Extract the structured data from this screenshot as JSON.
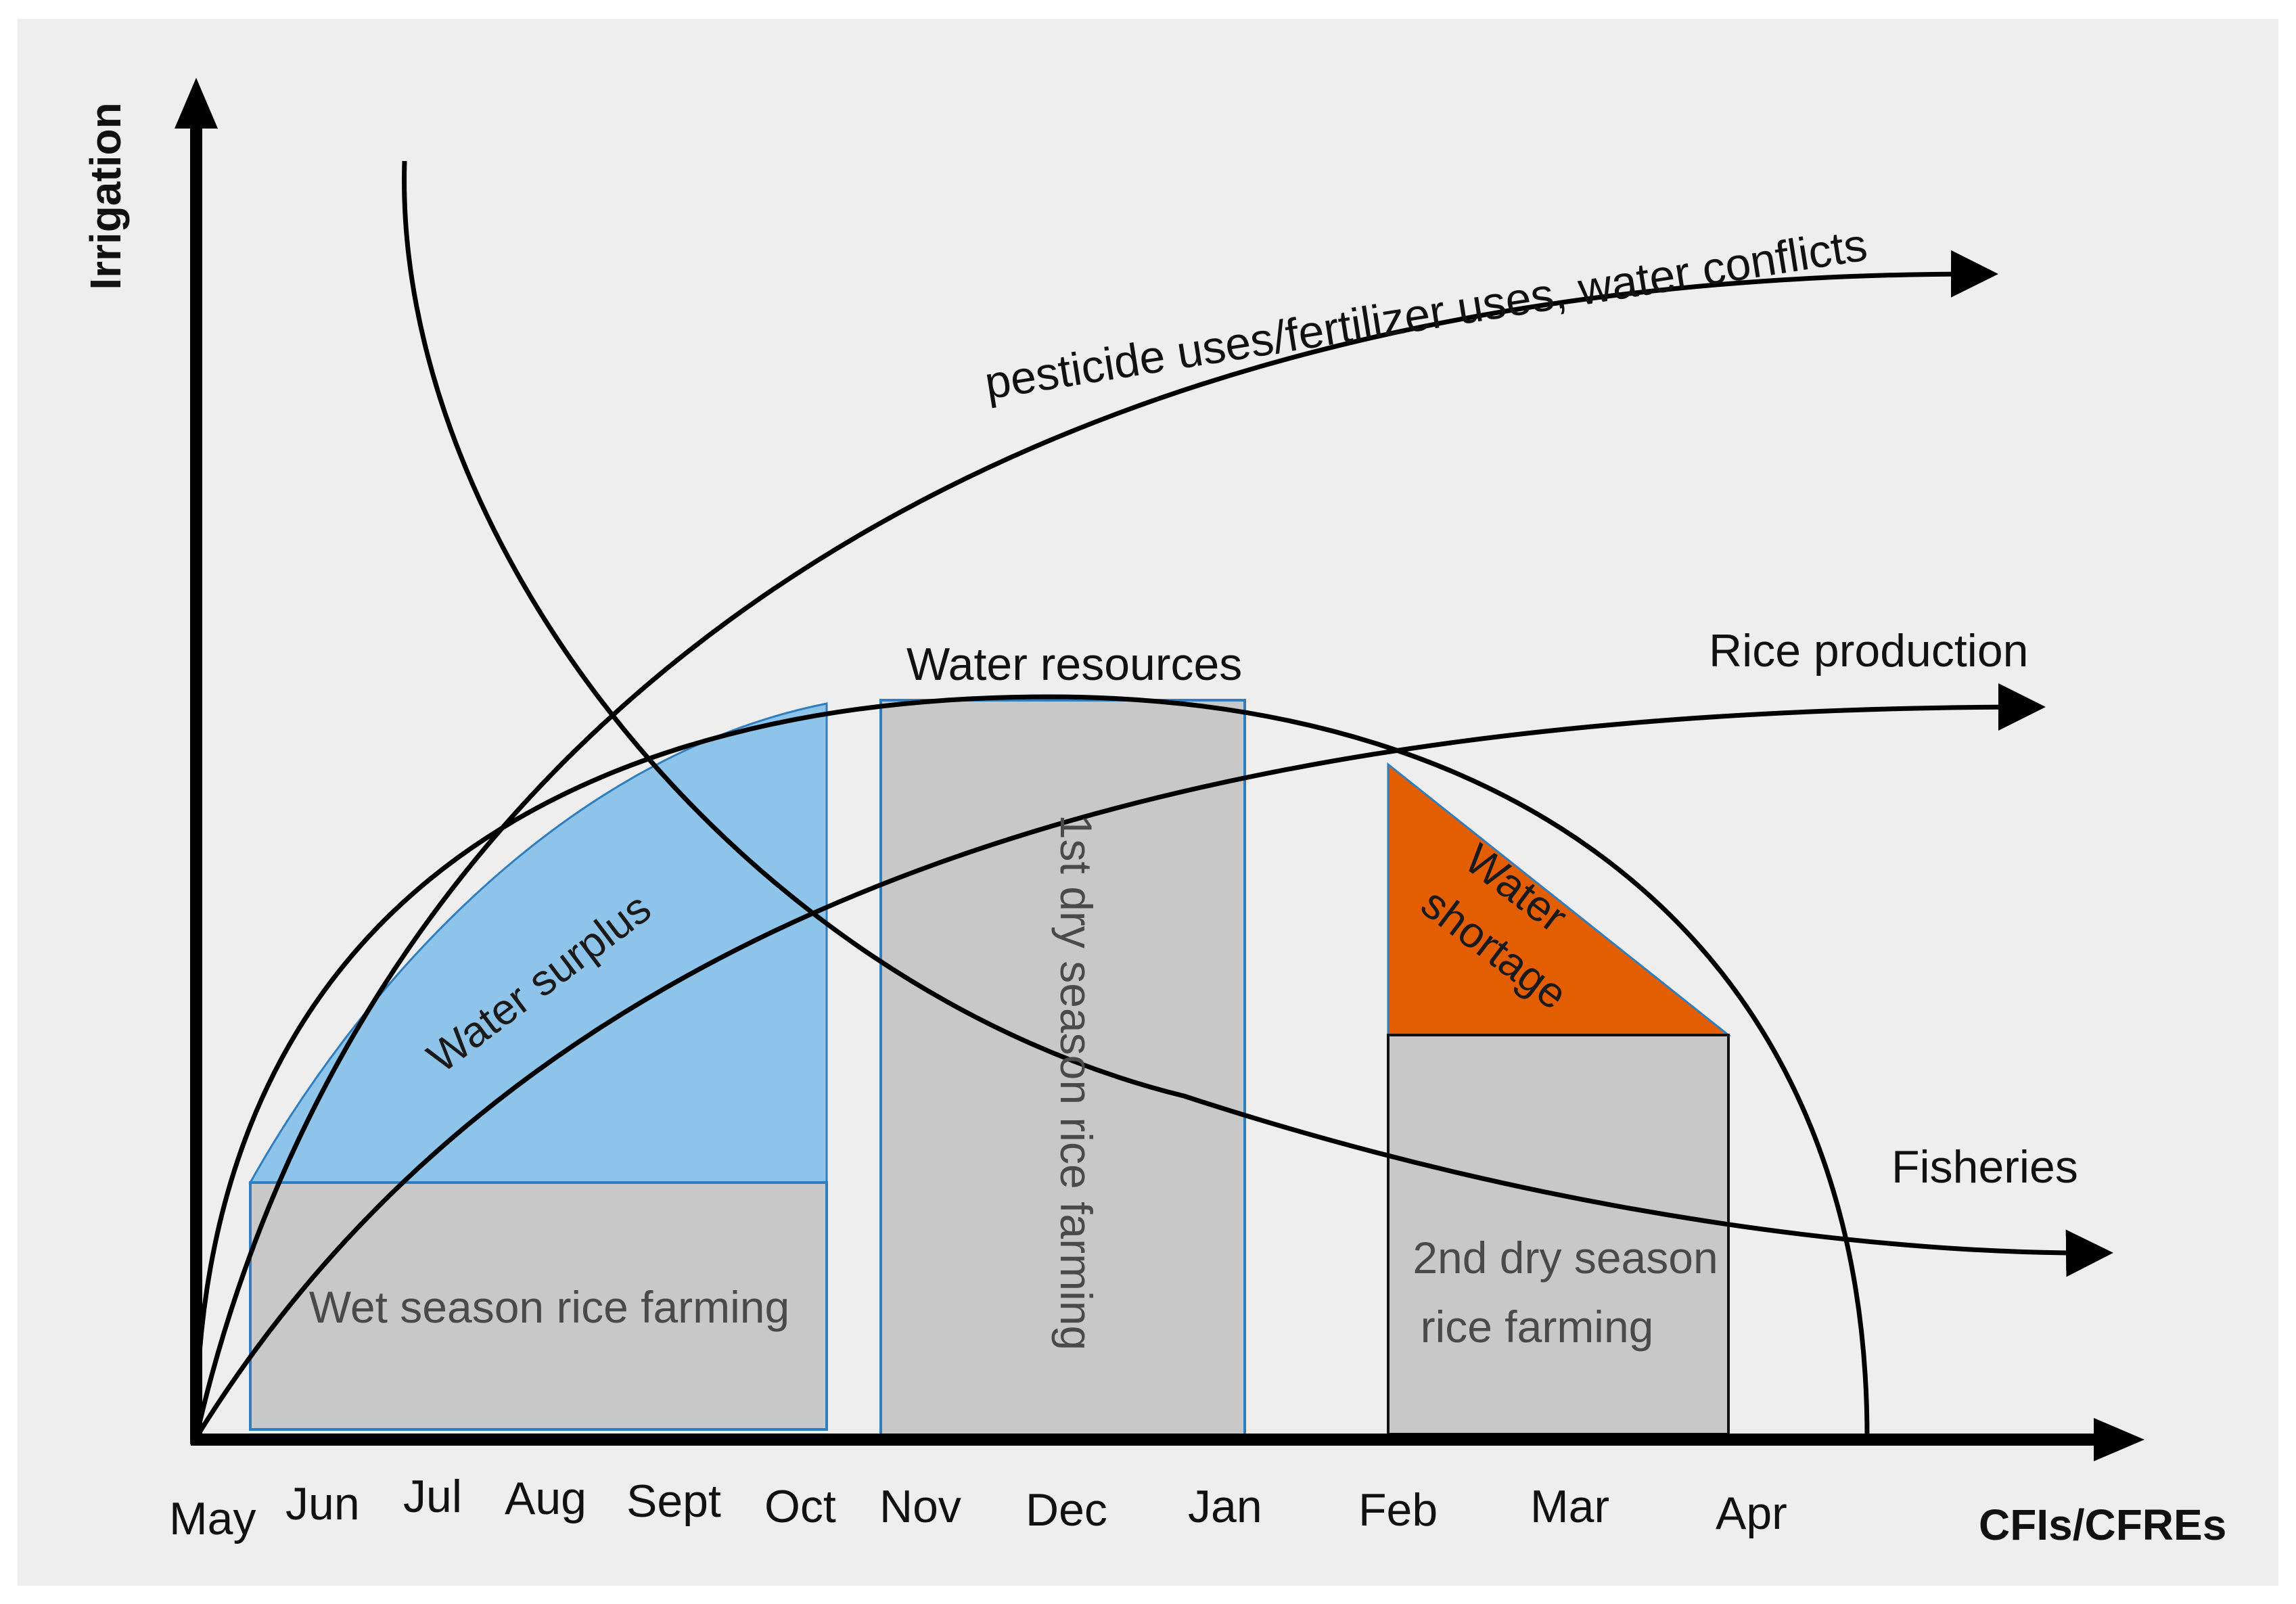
{
  "axes": {
    "y_title": "Irrigation",
    "x_title": "CFIs/CFREs",
    "months": [
      "May",
      "Jun",
      "Jul",
      "Aug",
      "Sept",
      "Oct",
      "Nov",
      "Dec",
      "Jan",
      "Feb",
      "Mar",
      "Apr"
    ]
  },
  "curves": {
    "pesticide": "pesticide uses/fertilizer uses, water conflicts",
    "water_resources": "Water resources",
    "rice_production": "Rice production",
    "fisheries": "Fisheries"
  },
  "regions": {
    "water_surplus": "Water surplus",
    "wet_season": "Wet season rice farming",
    "first_dry": "1st dry season rice farming",
    "water_shortage_line1": "Water",
    "water_shortage_line2": "shortage",
    "second_dry_line1": "2nd dry season",
    "second_dry_line2": "rice farming"
  },
  "colors": {
    "background": "#eeeeee",
    "surplus": "#8ec4ea",
    "shortage": "#e35e00",
    "farming_box": "#c8c8c8",
    "box_border": "#2f7fc0",
    "line": "#000000"
  }
}
